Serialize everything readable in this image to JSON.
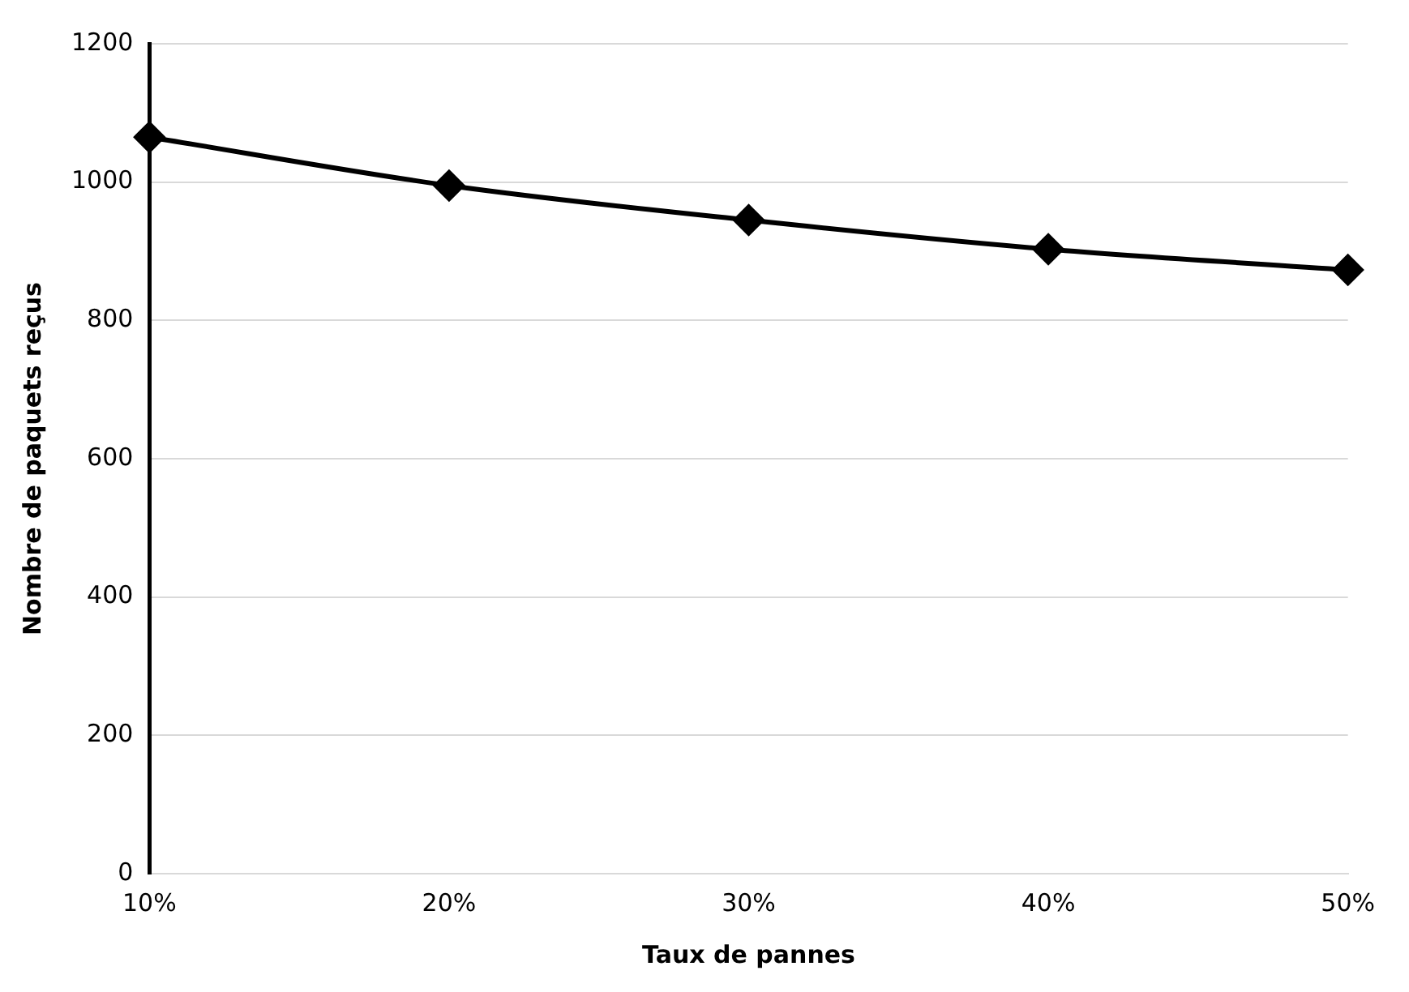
{
  "chart_data": {
    "type": "line",
    "xlabel": "Taux de pannes",
    "ylabel": "Nombre de paquets reçus",
    "categories": [
      "10%",
      "20%",
      "30%",
      "40%",
      "50%"
    ],
    "series": [
      {
        "color": "#000000",
        "values": [
          1065,
          995,
          945,
          903,
          873
        ]
      }
    ],
    "ylim": [
      0,
      1200
    ],
    "yticks": [
      0,
      200,
      400,
      600,
      800,
      1000,
      1200
    ],
    "grid": "y",
    "legend": false,
    "marker": "diamond",
    "line_style": "solid"
  }
}
